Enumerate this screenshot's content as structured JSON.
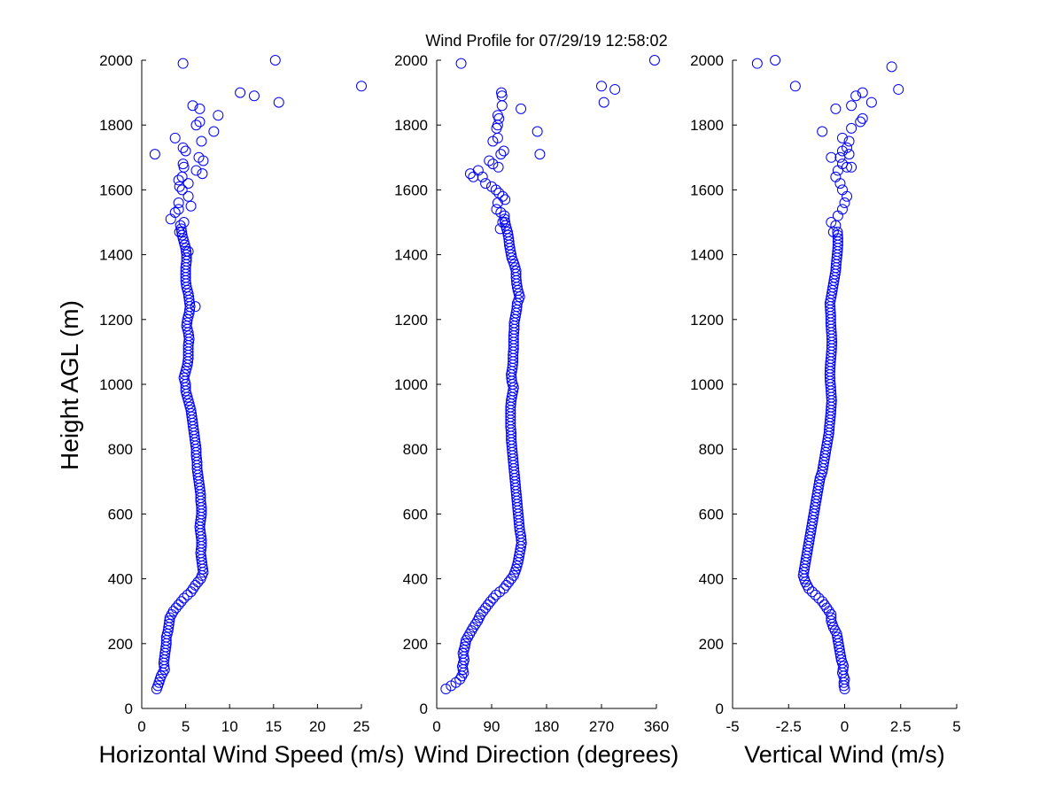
{
  "title": "Wind Profile for  07/29/19 12:58:02",
  "ylabel": "Height AGL (m)",
  "marker_color": "#0000ff",
  "chart_data": [
    {
      "type": "scatter",
      "xlabel": "Horizontal Wind Speed (m/s)",
      "ylabel": "Height AGL (m)",
      "xlim": [
        0,
        25
      ],
      "ylim": [
        0,
        2000
      ],
      "xticks": [
        "0",
        "5",
        "10",
        "15",
        "20",
        "25"
      ],
      "xtick_values": [
        0,
        5,
        10,
        15,
        20,
        25
      ],
      "yticks": [
        "0",
        "200",
        "400",
        "600",
        "800",
        "1000",
        "1200",
        "1400",
        "1600",
        "1800",
        "2000"
      ],
      "grid": false,
      "profile": [
        [
          60,
          1.7
        ],
        [
          75,
          1.9
        ],
        [
          100,
          2.2
        ],
        [
          120,
          2.6
        ],
        [
          140,
          2.5
        ],
        [
          160,
          2.6
        ],
        [
          180,
          2.7
        ],
        [
          200,
          2.8
        ],
        [
          220,
          2.8
        ],
        [
          240,
          3.0
        ],
        [
          260,
          3.1
        ],
        [
          280,
          3.2
        ],
        [
          300,
          3.6
        ],
        [
          320,
          4.2
        ],
        [
          340,
          4.8
        ],
        [
          360,
          5.6
        ],
        [
          380,
          6.1
        ],
        [
          400,
          6.7
        ],
        [
          420,
          7.0
        ],
        [
          440,
          6.9
        ],
        [
          460,
          6.8
        ],
        [
          480,
          6.7
        ],
        [
          500,
          6.8
        ],
        [
          520,
          6.8
        ],
        [
          540,
          6.7
        ],
        [
          560,
          6.6
        ],
        [
          580,
          6.7
        ],
        [
          600,
          6.8
        ],
        [
          620,
          6.8
        ],
        [
          640,
          6.7
        ],
        [
          660,
          6.7
        ],
        [
          680,
          6.6
        ],
        [
          700,
          6.5
        ],
        [
          720,
          6.4
        ],
        [
          740,
          6.3
        ],
        [
          760,
          6.3
        ],
        [
          780,
          6.2
        ],
        [
          800,
          6.2
        ],
        [
          820,
          6.1
        ],
        [
          840,
          6.0
        ],
        [
          860,
          5.9
        ],
        [
          880,
          5.8
        ],
        [
          900,
          5.7
        ],
        [
          920,
          5.6
        ],
        [
          940,
          5.4
        ],
        [
          960,
          5.2
        ],
        [
          980,
          5.0
        ],
        [
          1000,
          5.0
        ],
        [
          1020,
          4.8
        ],
        [
          1040,
          5.0
        ],
        [
          1060,
          5.2
        ],
        [
          1080,
          5.3
        ],
        [
          1100,
          5.3
        ],
        [
          1120,
          5.3
        ],
        [
          1140,
          5.4
        ],
        [
          1160,
          5.3
        ],
        [
          1180,
          5.1
        ],
        [
          1200,
          5.2
        ],
        [
          1220,
          5.4
        ],
        [
          1240,
          5.5
        ],
        [
          1260,
          5.4
        ],
        [
          1280,
          5.3
        ],
        [
          1300,
          5.1
        ],
        [
          1320,
          5.0
        ],
        [
          1340,
          5.0
        ],
        [
          1360,
          5.0
        ],
        [
          1380,
          5.1
        ],
        [
          1400,
          5.1
        ],
        [
          1420,
          5.0
        ],
        [
          1440,
          4.8
        ],
        [
          1460,
          4.6
        ],
        [
          1480,
          4.5
        ]
      ],
      "scatter": [
        [
          1.5,
          1710
        ],
        [
          3.8,
          1760
        ],
        [
          4.7,
          1730
        ],
        [
          5.0,
          1720
        ],
        [
          6.5,
          1700
        ],
        [
          7.0,
          1690
        ],
        [
          4.7,
          1680
        ],
        [
          4.8,
          1670
        ],
        [
          6.2,
          1660
        ],
        [
          6.9,
          1650
        ],
        [
          4.6,
          1640
        ],
        [
          4.2,
          1630
        ],
        [
          5.3,
          1620
        ],
        [
          4.3,
          1610
        ],
        [
          4.6,
          1600
        ],
        [
          5.3,
          1580
        ],
        [
          4.2,
          1560
        ],
        [
          5.6,
          1550
        ],
        [
          4.2,
          1540
        ],
        [
          3.8,
          1530
        ],
        [
          3.3,
          1510
        ],
        [
          4.8,
          1500
        ],
        [
          4.4,
          1490
        ],
        [
          4.3,
          1470
        ],
        [
          5.8,
          1860
        ],
        [
          6.6,
          1850
        ],
        [
          8.7,
          1830
        ],
        [
          6.6,
          1810
        ],
        [
          6.2,
          1800
        ],
        [
          8.2,
          1780
        ],
        [
          6.8,
          1750
        ],
        [
          11.2,
          1900
        ],
        [
          12.8,
          1890
        ],
        [
          15.6,
          1870
        ],
        [
          4.7,
          1990
        ],
        [
          15.2,
          2000
        ],
        [
          25.0,
          1920
        ],
        [
          5.3,
          1410
        ],
        [
          6.1,
          1240
        ]
      ]
    },
    {
      "type": "scatter",
      "xlabel": "Wind Direction (degrees)",
      "ylabel": "",
      "xlim": [
        0,
        360
      ],
      "ylim": [
        0,
        2000
      ],
      "xticks": [
        "0",
        "90",
        "180",
        "270",
        "360"
      ],
      "xtick_values": [
        0,
        90,
        180,
        270,
        360
      ],
      "yticks": [
        "0",
        "200",
        "400",
        "600",
        "800",
        "1000",
        "1200",
        "1400",
        "1600",
        "1800",
        "2000"
      ],
      "grid": false,
      "profile": [
        [
          60,
          15
        ],
        [
          75,
          28
        ],
        [
          90,
          38
        ],
        [
          110,
          44
        ],
        [
          130,
          42
        ],
        [
          150,
          45
        ],
        [
          170,
          43
        ],
        [
          190,
          46
        ],
        [
          210,
          48
        ],
        [
          230,
          54
        ],
        [
          250,
          60
        ],
        [
          270,
          67
        ],
        [
          290,
          72
        ],
        [
          310,
          80
        ],
        [
          330,
          88
        ],
        [
          350,
          97
        ],
        [
          370,
          110
        ],
        [
          390,
          118
        ],
        [
          410,
          126
        ],
        [
          430,
          130
        ],
        [
          450,
          133
        ],
        [
          470,
          135
        ],
        [
          490,
          137
        ],
        [
          510,
          139
        ],
        [
          530,
          138
        ],
        [
          550,
          136
        ],
        [
          570,
          135
        ],
        [
          590,
          134
        ],
        [
          610,
          133
        ],
        [
          630,
          132
        ],
        [
          650,
          131
        ],
        [
          670,
          130
        ],
        [
          690,
          129
        ],
        [
          710,
          128
        ],
        [
          730,
          127
        ],
        [
          750,
          126
        ],
        [
          770,
          125
        ],
        [
          790,
          124
        ],
        [
          810,
          123
        ],
        [
          830,
          122
        ],
        [
          850,
          122
        ],
        [
          870,
          121
        ],
        [
          890,
          121
        ],
        [
          910,
          121
        ],
        [
          930,
          121
        ],
        [
          950,
          122
        ],
        [
          970,
          124
        ],
        [
          990,
          126
        ],
        [
          1010,
          123
        ],
        [
          1030,
          122
        ],
        [
          1050,
          124
        ],
        [
          1070,
          125
        ],
        [
          1090,
          125
        ],
        [
          1110,
          126
        ],
        [
          1130,
          126
        ],
        [
          1150,
          126
        ],
        [
          1170,
          127
        ],
        [
          1190,
          127
        ],
        [
          1210,
          129
        ],
        [
          1230,
          131
        ],
        [
          1250,
          132
        ],
        [
          1270,
          136
        ],
        [
          1290,
          133
        ],
        [
          1310,
          131
        ],
        [
          1330,
          130
        ],
        [
          1350,
          130
        ],
        [
          1370,
          127
        ],
        [
          1390,
          123
        ],
        [
          1410,
          121
        ],
        [
          1430,
          119
        ],
        [
          1450,
          118
        ],
        [
          1470,
          116
        ],
        [
          1490,
          113
        ],
        [
          1510,
          111
        ]
      ],
      "scatter": [
        [
          55,
          1650
        ],
        [
          60,
          1640
        ],
        [
          68,
          1660
        ],
        [
          75,
          1640
        ],
        [
          80,
          1620
        ],
        [
          90,
          1610
        ],
        [
          97,
          1600
        ],
        [
          102,
          1590
        ],
        [
          108,
          1580
        ],
        [
          112,
          1570
        ],
        [
          100,
          1560
        ],
        [
          98,
          1540
        ],
        [
          105,
          1530
        ],
        [
          111,
          1520
        ],
        [
          108,
          1500
        ],
        [
          104,
          1480
        ],
        [
          86,
          1690
        ],
        [
          92,
          1680
        ],
        [
          101,
          1670
        ],
        [
          105,
          1710
        ],
        [
          110,
          1720
        ],
        [
          92,
          1750
        ],
        [
          100,
          1760
        ],
        [
          98,
          1790
        ],
        [
          100,
          1800
        ],
        [
          102,
          1820
        ],
        [
          100,
          1830
        ],
        [
          107,
          1860
        ],
        [
          107,
          1890
        ],
        [
          106,
          1900
        ],
        [
          138,
          1850
        ],
        [
          165,
          1780
        ],
        [
          169,
          1710
        ],
        [
          270,
          1920
        ],
        [
          292,
          1910
        ],
        [
          274,
          1870
        ],
        [
          40,
          1990
        ],
        [
          357,
          2000
        ]
      ]
    },
    {
      "type": "scatter",
      "xlabel": "Vertical Wind (m/s)",
      "ylabel": "",
      "xlim": [
        -5,
        5
      ],
      "ylim": [
        0,
        2000
      ],
      "xticks": [
        "-5",
        "-2.5",
        "0",
        "2.5",
        "5"
      ],
      "xtick_values": [
        -5,
        -2.5,
        0,
        2.5,
        5
      ],
      "yticks": [
        "0",
        "200",
        "400",
        "600",
        "800",
        "1000",
        "1200",
        "1400",
        "1600",
        "1800",
        "2000"
      ],
      "grid": false,
      "profile": [
        [
          60,
          0.0
        ],
        [
          75,
          -0.05
        ],
        [
          90,
          0.0
        ],
        [
          110,
          -0.1
        ],
        [
          130,
          -0.05
        ],
        [
          150,
          -0.15
        ],
        [
          170,
          -0.2
        ],
        [
          190,
          -0.25
        ],
        [
          210,
          -0.3
        ],
        [
          230,
          -0.35
        ],
        [
          250,
          -0.5
        ],
        [
          270,
          -0.6
        ],
        [
          290,
          -0.6
        ],
        [
          310,
          -0.8
        ],
        [
          330,
          -1.0
        ],
        [
          350,
          -1.3
        ],
        [
          370,
          -1.6
        ],
        [
          390,
          -1.75
        ],
        [
          410,
          -1.85
        ],
        [
          430,
          -1.8
        ],
        [
          450,
          -1.75
        ],
        [
          470,
          -1.7
        ],
        [
          490,
          -1.65
        ],
        [
          510,
          -1.6
        ],
        [
          530,
          -1.55
        ],
        [
          550,
          -1.5
        ],
        [
          570,
          -1.45
        ],
        [
          590,
          -1.4
        ],
        [
          610,
          -1.35
        ],
        [
          630,
          -1.3
        ],
        [
          650,
          -1.25
        ],
        [
          670,
          -1.2
        ],
        [
          690,
          -1.15
        ],
        [
          710,
          -1.1
        ],
        [
          730,
          -1.0
        ],
        [
          750,
          -0.95
        ],
        [
          770,
          -0.9
        ],
        [
          790,
          -0.85
        ],
        [
          810,
          -0.8
        ],
        [
          830,
          -0.75
        ],
        [
          850,
          -0.7
        ],
        [
          870,
          -0.68
        ],
        [
          890,
          -0.65
        ],
        [
          910,
          -0.62
        ],
        [
          930,
          -0.6
        ],
        [
          950,
          -0.58
        ],
        [
          970,
          -0.6
        ],
        [
          990,
          -0.62
        ],
        [
          1010,
          -0.65
        ],
        [
          1030,
          -0.66
        ],
        [
          1050,
          -0.65
        ],
        [
          1070,
          -0.63
        ],
        [
          1090,
          -0.6
        ],
        [
          1110,
          -0.58
        ],
        [
          1130,
          -0.57
        ],
        [
          1150,
          -0.58
        ],
        [
          1170,
          -0.6
        ],
        [
          1190,
          -0.62
        ],
        [
          1210,
          -0.62
        ],
        [
          1230,
          -0.64
        ],
        [
          1250,
          -0.66
        ],
        [
          1270,
          -0.6
        ],
        [
          1290,
          -0.55
        ],
        [
          1310,
          -0.5
        ],
        [
          1330,
          -0.45
        ],
        [
          1350,
          -0.4
        ],
        [
          1370,
          -0.38
        ],
        [
          1390,
          -0.35
        ],
        [
          1410,
          -0.32
        ],
        [
          1430,
          -0.3
        ],
        [
          1450,
          -0.3
        ],
        [
          1470,
          -0.32
        ]
      ],
      "scatter": [
        [
          -0.6,
          1500
        ],
        [
          -0.4,
          1490
        ],
        [
          -0.5,
          1470
        ],
        [
          -0.3,
          1520
        ],
        [
          -0.1,
          1540
        ],
        [
          0.0,
          1560
        ],
        [
          0.1,
          1580
        ],
        [
          -0.1,
          1600
        ],
        [
          -0.2,
          1620
        ],
        [
          -0.4,
          1640
        ],
        [
          -0.3,
          1660
        ],
        [
          0.1,
          1670
        ],
        [
          0.3,
          1670
        ],
        [
          -0.1,
          1680
        ],
        [
          -0.2,
          1700
        ],
        [
          -0.6,
          1700
        ],
        [
          0.2,
          1710
        ],
        [
          -0.1,
          1720
        ],
        [
          0.1,
          1730
        ],
        [
          0.2,
          1750
        ],
        [
          -0.1,
          1760
        ],
        [
          -1.0,
          1780
        ],
        [
          0.3,
          1790
        ],
        [
          0.7,
          1810
        ],
        [
          0.8,
          1820
        ],
        [
          -0.4,
          1850
        ],
        [
          0.3,
          1860
        ],
        [
          1.2,
          1870
        ],
        [
          0.5,
          1890
        ],
        [
          0.8,
          1900
        ],
        [
          2.4,
          1910
        ],
        [
          -2.2,
          1920
        ],
        [
          2.1,
          1980
        ],
        [
          -3.9,
          1990
        ],
        [
          -3.1,
          2000
        ]
      ]
    }
  ]
}
